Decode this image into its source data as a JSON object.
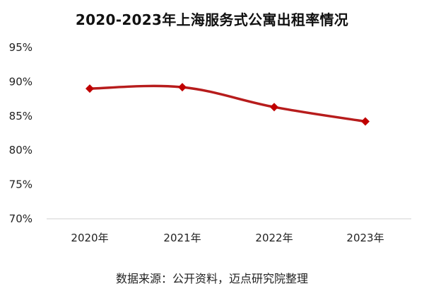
{
  "chart_data": {
    "type": "line",
    "title": "2020-2023年上海服务式公寓出租率情况",
    "source": "数据来源：公开资料，迈点研究院整理",
    "categories": [
      "2020年",
      "2021年",
      "2022年",
      "2023年"
    ],
    "series": [
      {
        "values": [
          89.0,
          89.2,
          86.3,
          84.2
        ],
        "marker": "diamond"
      }
    ],
    "ylim": [
      70,
      95
    ],
    "yticks": [
      70,
      75,
      80,
      85,
      90,
      95
    ],
    "ytick_labels": [
      "70%",
      "75%",
      "80%",
      "85%",
      "90%",
      "95%"
    ],
    "xlabel": "",
    "ylabel": "",
    "grid": false,
    "colors": {
      "line": "#b71c1c",
      "marker": "#c00000",
      "axis": "#d0d0d0"
    }
  }
}
